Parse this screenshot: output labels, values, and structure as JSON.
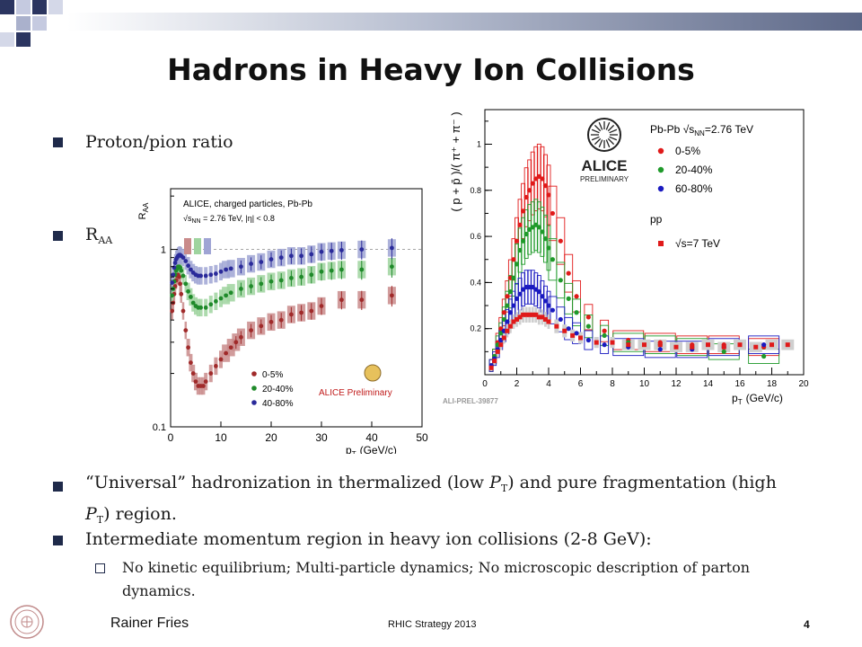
{
  "slide": {
    "title": "Hadrons in Heavy Ion Collisions",
    "bullets": [
      {
        "text": "Proton/pion ratio"
      },
      {
        "text": "R",
        "sub": "AA"
      }
    ],
    "bottom_bullets": [
      {
        "parts": [
          "“Universal” hadronization in thermalized (low ",
          "P",
          "T",
          ") and pure fragmentation (high"
        ]
      },
      {
        "parts": [
          "P",
          "T",
          ") region."
        ]
      },
      {
        "text": "Intermediate momentum region in heavy ion collisions (2-8 GeV):"
      }
    ],
    "sub_bullet": {
      "line1": "No kinetic equilibrium; Multi-particle dynamics; No microscopic description of parton",
      "line2": "dynamics."
    }
  },
  "footer": {
    "author": "Rainer Fries",
    "center": "RHIC Strategy 2013",
    "page": "4"
  },
  "chart_data": [
    {
      "type": "scatter",
      "title": "",
      "header_lines": [
        "ALICE, charged particles, Pb-Pb",
        "√s",
        "NN",
        " = 2.76 TeV, |η| < 0.8"
      ],
      "ylabel": "R",
      "ylabel_sub": "AA",
      "xlabel": "p",
      "xlabel_sub": "T",
      "xunit": "(GeV/c)",
      "y_scale": "log",
      "xlim": [
        0,
        50
      ],
      "ylim": [
        0.1,
        2.2
      ],
      "xticks": [
        "0",
        "10",
        "20",
        "30",
        "40",
        "50"
      ],
      "yticks": [
        "0.1",
        "1"
      ],
      "legend": [
        "0-5%",
        "20-40%",
        "40-80%"
      ],
      "annotation": "ALICE Preliminary",
      "series": [
        {
          "name": "0-5%",
          "color": "#a02a2a",
          "band": "#c98b8b",
          "x": [
            0.3,
            0.5,
            0.7,
            0.9,
            1.1,
            1.3,
            1.5,
            1.7,
            1.9,
            2.1,
            2.5,
            3,
            3.5,
            4,
            4.5,
            5,
            5.5,
            6,
            6.5,
            7,
            8,
            9,
            10,
            11,
            12,
            13,
            14,
            16,
            18,
            20,
            22,
            24,
            26,
            28,
            30,
            34,
            38,
            44
          ],
          "y": [
            0.45,
            0.5,
            0.56,
            0.62,
            0.67,
            0.71,
            0.72,
            0.7,
            0.64,
            0.56,
            0.45,
            0.35,
            0.28,
            0.23,
            0.2,
            0.18,
            0.17,
            0.17,
            0.17,
            0.18,
            0.2,
            0.22,
            0.24,
            0.26,
            0.28,
            0.3,
            0.32,
            0.35,
            0.37,
            0.39,
            0.4,
            0.43,
            0.44,
            0.45,
            0.48,
            0.52,
            0.52,
            0.55
          ]
        },
        {
          "name": "20-40%",
          "color": "#1f8a2a",
          "band": "#9fd49f",
          "x": [
            0.3,
            0.5,
            0.7,
            0.9,
            1.1,
            1.3,
            1.5,
            1.7,
            1.9,
            2.1,
            2.5,
            3,
            3.5,
            4,
            4.5,
            5,
            5.5,
            6,
            7,
            8,
            9,
            10,
            11,
            12,
            14,
            16,
            18,
            20,
            22,
            24,
            26,
            28,
            30,
            32,
            34,
            38,
            44
          ],
          "y": [
            0.55,
            0.6,
            0.66,
            0.72,
            0.76,
            0.78,
            0.8,
            0.8,
            0.79,
            0.76,
            0.71,
            0.64,
            0.58,
            0.54,
            0.5,
            0.48,
            0.47,
            0.47,
            0.47,
            0.49,
            0.51,
            0.53,
            0.55,
            0.57,
            0.6,
            0.62,
            0.64,
            0.66,
            0.67,
            0.69,
            0.7,
            0.72,
            0.75,
            0.76,
            0.77,
            0.77,
            0.8
          ]
        },
        {
          "name": "40-80%",
          "color": "#2a2a9a",
          "band": "#9fa4d4",
          "x": [
            0.3,
            0.5,
            0.7,
            0.9,
            1.1,
            1.3,
            1.5,
            1.7,
            1.9,
            2.1,
            2.5,
            3,
            3.5,
            4,
            4.5,
            5,
            5.5,
            6,
            7,
            8,
            9,
            10,
            11,
            12,
            14,
            16,
            18,
            20,
            22,
            24,
            26,
            28,
            30,
            32,
            34,
            38,
            44
          ],
          "y": [
            0.65,
            0.72,
            0.79,
            0.84,
            0.88,
            0.9,
            0.92,
            0.93,
            0.93,
            0.92,
            0.9,
            0.86,
            0.81,
            0.77,
            0.74,
            0.72,
            0.71,
            0.71,
            0.71,
            0.72,
            0.73,
            0.75,
            0.77,
            0.78,
            0.8,
            0.83,
            0.85,
            0.88,
            0.9,
            0.92,
            0.92,
            0.94,
            0.97,
            0.98,
            0.99,
            1.0,
            1.02
          ]
        }
      ]
    },
    {
      "type": "scatter",
      "title": "",
      "ylabel": "( p + p̄ )/( π⁺ + π⁻ )",
      "xlabel": "p",
      "xlabel_sub": "T",
      "xunit": "(GeV/c)",
      "xlim": [
        0,
        20
      ],
      "ylim": [
        0,
        1.15
      ],
      "xticks": [
        "0",
        "2",
        "4",
        "6",
        "8",
        "10",
        "12",
        "14",
        "16",
        "18",
        "20"
      ],
      "yticks": [
        "0.2",
        "0.4",
        "0.6",
        "0.8",
        "1"
      ],
      "legend_header": "Pb-Pb",
      "legend_energy": [
        "√s",
        "NN",
        "=2.76 TeV"
      ],
      "legend": [
        "0-5%",
        "20-40%",
        "60-80%"
      ],
      "pp_label": "pp",
      "pp_legend": "√s=7 TeV",
      "logo_text": [
        "ALICE",
        "PRELIMINARY"
      ],
      "footnote": "ALI-PREL-39877",
      "series": [
        {
          "name": "0-5%",
          "color": "#e01a1a",
          "x": [
            0.4,
            0.6,
            0.8,
            1.0,
            1.2,
            1.4,
            1.6,
            1.8,
            2.0,
            2.2,
            2.4,
            2.6,
            2.8,
            3.0,
            3.2,
            3.4,
            3.6,
            3.8,
            4.0,
            4.25,
            4.75,
            5.25,
            5.75,
            6.5,
            7.5,
            9,
            11,
            13,
            15,
            17.5
          ],
          "y": [
            0.04,
            0.08,
            0.14,
            0.2,
            0.27,
            0.34,
            0.42,
            0.5,
            0.58,
            0.65,
            0.71,
            0.77,
            0.8,
            0.83,
            0.85,
            0.86,
            0.85,
            0.82,
            0.78,
            0.7,
            0.58,
            0.44,
            0.34,
            0.25,
            0.19,
            0.15,
            0.14,
            0.13,
            0.13,
            0.12
          ]
        },
        {
          "name": "20-40%",
          "color": "#1f9a2a",
          "x": [
            0.4,
            0.6,
            0.8,
            1.0,
            1.2,
            1.4,
            1.6,
            1.8,
            2.0,
            2.2,
            2.4,
            2.6,
            2.8,
            3.0,
            3.2,
            3.4,
            3.6,
            3.8,
            4.0,
            4.25,
            4.75,
            5.25,
            5.75,
            6.5,
            7.5,
            9,
            11,
            13,
            15,
            17.5
          ],
          "y": [
            0.04,
            0.08,
            0.13,
            0.18,
            0.24,
            0.3,
            0.36,
            0.42,
            0.48,
            0.54,
            0.58,
            0.61,
            0.63,
            0.64,
            0.65,
            0.64,
            0.62,
            0.59,
            0.55,
            0.5,
            0.41,
            0.33,
            0.27,
            0.21,
            0.17,
            0.14,
            0.13,
            0.12,
            0.1,
            0.08
          ]
        },
        {
          "name": "60-80%",
          "color": "#1a1ac0",
          "x": [
            0.4,
            0.6,
            0.8,
            1.0,
            1.2,
            1.4,
            1.6,
            1.8,
            2.0,
            2.2,
            2.4,
            2.6,
            2.8,
            3.0,
            3.2,
            3.4,
            3.6,
            3.8,
            4.0,
            4.25,
            4.75,
            5.25,
            5.75,
            6.5,
            7.5,
            9,
            11,
            13,
            15,
            17.5
          ],
          "y": [
            0.04,
            0.07,
            0.11,
            0.15,
            0.19,
            0.23,
            0.27,
            0.3,
            0.33,
            0.35,
            0.37,
            0.38,
            0.38,
            0.38,
            0.37,
            0.36,
            0.34,
            0.32,
            0.3,
            0.28,
            0.24,
            0.2,
            0.18,
            0.15,
            0.13,
            0.12,
            0.11,
            0.11,
            0.12,
            0.13
          ]
        },
        {
          "name": "√s=7 TeV",
          "color": "#e01a1a",
          "marker": "square",
          "x": [
            0.4,
            0.6,
            0.8,
            1.0,
            1.2,
            1.4,
            1.6,
            1.8,
            2.0,
            2.2,
            2.4,
            2.6,
            2.8,
            3.0,
            3.2,
            3.4,
            3.6,
            3.8,
            4.0,
            4.5,
            5,
            5.5,
            6,
            7,
            8,
            9,
            10,
            11,
            12,
            13,
            14,
            15,
            16,
            17,
            18,
            19
          ],
          "y": [
            0.03,
            0.06,
            0.1,
            0.13,
            0.16,
            0.19,
            0.21,
            0.23,
            0.24,
            0.25,
            0.26,
            0.26,
            0.26,
            0.26,
            0.26,
            0.25,
            0.25,
            0.24,
            0.23,
            0.21,
            0.19,
            0.17,
            0.16,
            0.14,
            0.14,
            0.13,
            0.13,
            0.13,
            0.12,
            0.12,
            0.13,
            0.12,
            0.13,
            0.12,
            0.13,
            0.13
          ]
        }
      ]
    }
  ]
}
